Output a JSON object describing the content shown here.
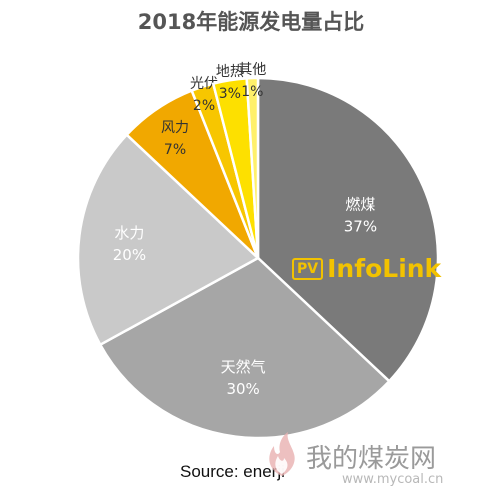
{
  "chart_data": {
    "type": "pie",
    "title": "2018年能源发电量占比",
    "categories": [
      "燃煤",
      "天然气",
      "水力",
      "风力",
      "光伏",
      "地热",
      "其他"
    ],
    "values": [
      37,
      30,
      20,
      7,
      2,
      3,
      1
    ],
    "value_labels": [
      "37%",
      "30%",
      "20%",
      "7%",
      "2%",
      "3%",
      "1%"
    ],
    "colors": [
      "#7a7a7a",
      "#a6a6a6",
      "#c9c9c9",
      "#f1a800",
      "#f7c600",
      "#fde000",
      "#fff06a"
    ],
    "source": "Source: enerji"
  },
  "logo": {
    "badge": "PV",
    "text": "InfoLink"
  },
  "watermark": {
    "text": "我的煤炭网",
    "url": "www.mycoal.cn"
  }
}
